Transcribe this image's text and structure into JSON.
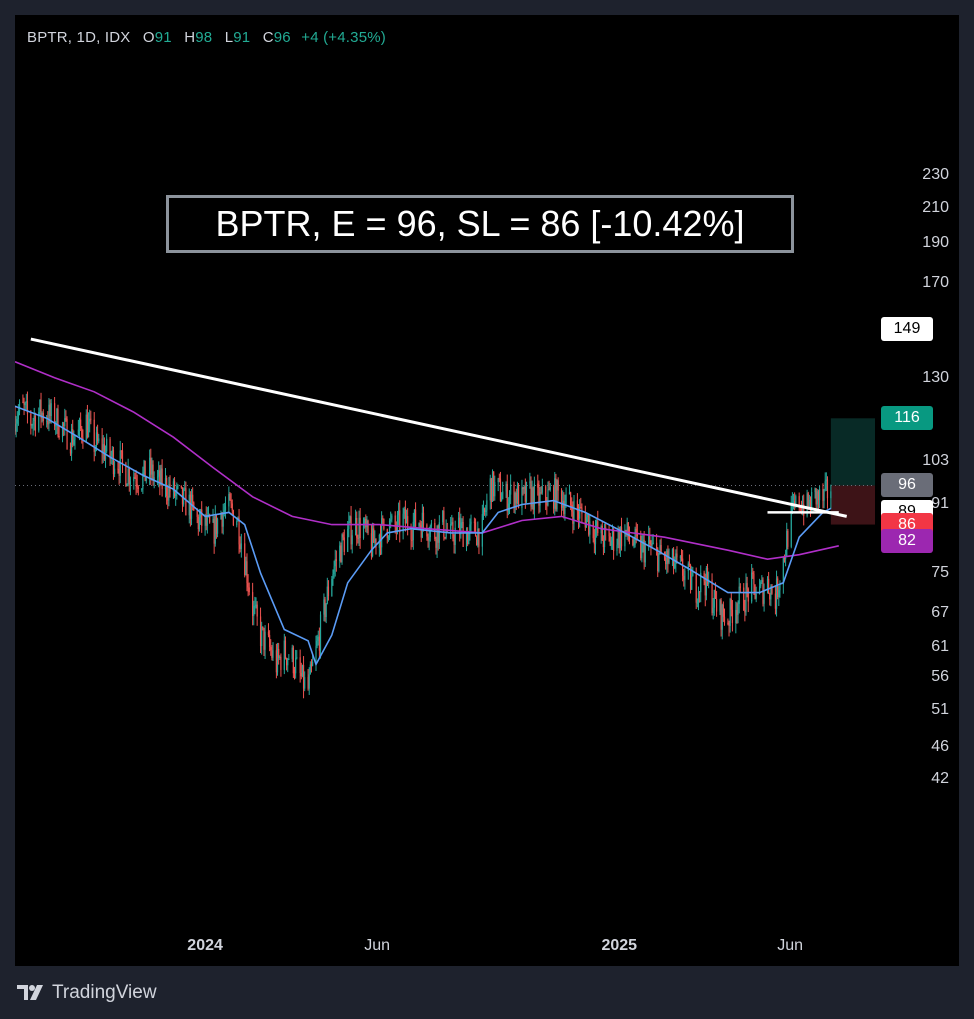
{
  "legend": {
    "symbol": "BPTR, 1D, IDX",
    "open_label": "O",
    "open": "91",
    "high_label": "H",
    "high": "98",
    "low_label": "L",
    "low": "91",
    "close_label": "C",
    "close": "96",
    "change": "+4 (+4.35%)"
  },
  "annotation": "BPTR, E = 96, SL = 86 [-10.42%]",
  "brand": "TradingView",
  "colors": {
    "up": "#26a69a",
    "down": "#ef5350",
    "ema_fast": "#5b9cf6",
    "ema_slow": "#b02fc8",
    "profit_zone": "#082a26",
    "loss_zone": "#3d1317",
    "background": "#000000"
  },
  "badges": [
    {
      "label": "149",
      "value": 149,
      "bg": "#ffffff",
      "fg": "#000000",
      "name": "price-label-149"
    },
    {
      "label": "116",
      "value": 116,
      "bg": "#089981",
      "fg": "#ffffff",
      "name": "target-price-badge"
    },
    {
      "label": "96",
      "value": 96,
      "bg": "#6a6d78",
      "fg": "#ffffff",
      "name": "last-price-badge"
    },
    {
      "label": "89",
      "value": 89,
      "bg": "#ffffff",
      "fg": "#000000",
      "name": "ema-fast-price-badge"
    },
    {
      "label": "86",
      "value": 86,
      "bg": "#f23645",
      "fg": "#ffffff",
      "name": "stop-loss-badge"
    },
    {
      "label": "82",
      "value": 82,
      "bg": "#9c27b0",
      "fg": "#ffffff",
      "name": "ema-slow-price-badge"
    }
  ],
  "chart_data": {
    "type": "candlestick",
    "scale": "log",
    "ylim": [
      42,
      230
    ],
    "y_ticks": [
      "230",
      "210",
      "190",
      "170",
      "130",
      "103",
      "91",
      "75",
      "67",
      "61",
      "56",
      "51",
      "46",
      "42"
    ],
    "x_ticks": [
      {
        "label": "2024",
        "bold": true,
        "date": "2024-01-01"
      },
      {
        "label": "Jun",
        "bold": false,
        "date": "2024-06-01"
      },
      {
        "label": "2025",
        "bold": true,
        "date": "2025-01-01"
      },
      {
        "label": "Jun",
        "bold": false,
        "date": "2025-06-01"
      }
    ],
    "xlim": [
      "2023-07-17",
      "2025-08-15"
    ],
    "last_price": 96,
    "series": [
      {
        "type": "close",
        "points": [
          [
            "2023-07-17",
            117
          ],
          [
            "2023-07-24",
            119
          ],
          [
            "2023-07-31",
            115
          ],
          [
            "2023-08-07",
            118
          ],
          [
            "2023-08-14",
            117
          ],
          [
            "2023-08-21",
            116
          ],
          [
            "2023-08-28",
            113
          ],
          [
            "2023-09-04",
            110
          ],
          [
            "2023-09-11",
            111
          ],
          [
            "2023-09-18",
            115
          ],
          [
            "2023-09-25",
            108
          ],
          [
            "2023-10-02",
            107
          ],
          [
            "2023-10-09",
            104
          ],
          [
            "2023-10-16",
            103
          ],
          [
            "2023-10-23",
            100
          ],
          [
            "2023-10-30",
            99
          ],
          [
            "2023-11-06",
            98
          ],
          [
            "2023-11-13",
            100
          ],
          [
            "2023-11-20",
            97
          ],
          [
            "2023-11-27",
            96
          ],
          [
            "2023-12-04",
            94
          ],
          [
            "2023-12-11",
            92
          ],
          [
            "2023-12-18",
            91
          ],
          [
            "2023-12-25",
            87
          ],
          [
            "2024-01-01",
            86
          ],
          [
            "2024-01-08",
            84
          ],
          [
            "2024-01-15",
            89
          ],
          [
            "2024-01-22",
            90
          ],
          [
            "2024-01-29",
            88
          ],
          [
            "2024-02-05",
            78
          ],
          [
            "2024-02-12",
            68
          ],
          [
            "2024-02-19",
            63
          ],
          [
            "2024-02-26",
            61
          ],
          [
            "2024-03-04",
            58
          ],
          [
            "2024-03-11",
            60
          ],
          [
            "2024-03-18",
            59
          ],
          [
            "2024-03-25",
            56
          ],
          [
            "2024-04-01",
            54
          ],
          [
            "2024-04-08",
            60
          ],
          [
            "2024-04-15",
            67
          ],
          [
            "2024-04-22",
            75
          ],
          [
            "2024-04-29",
            80
          ],
          [
            "2024-05-06",
            84
          ],
          [
            "2024-05-13",
            86
          ],
          [
            "2024-05-20",
            85
          ],
          [
            "2024-05-27",
            81
          ],
          [
            "2024-06-03",
            84
          ],
          [
            "2024-06-10",
            86
          ],
          [
            "2024-06-17",
            85
          ],
          [
            "2024-06-24",
            87
          ],
          [
            "2024-07-01",
            86
          ],
          [
            "2024-07-08",
            87
          ],
          [
            "2024-07-15",
            86
          ],
          [
            "2024-07-22",
            84
          ],
          [
            "2024-07-29",
            86
          ],
          [
            "2024-08-05",
            83
          ],
          [
            "2024-08-12",
            85
          ],
          [
            "2024-08-19",
            84
          ],
          [
            "2024-08-26",
            84
          ],
          [
            "2024-09-02",
            85
          ],
          [
            "2024-09-09",
            96
          ],
          [
            "2024-09-16",
            95
          ],
          [
            "2024-09-23",
            93
          ],
          [
            "2024-09-30",
            94
          ],
          [
            "2024-10-07",
            92
          ],
          [
            "2024-10-14",
            94
          ],
          [
            "2024-10-21",
            92
          ],
          [
            "2024-10-28",
            93
          ],
          [
            "2024-11-04",
            94
          ],
          [
            "2024-11-11",
            93
          ],
          [
            "2024-11-18",
            91
          ],
          [
            "2024-11-25",
            89
          ],
          [
            "2024-12-02",
            88
          ],
          [
            "2024-12-09",
            85
          ],
          [
            "2024-12-16",
            83
          ],
          [
            "2024-12-23",
            82
          ],
          [
            "2024-12-30",
            83
          ],
          [
            "2025-01-06",
            84
          ],
          [
            "2025-01-13",
            82
          ],
          [
            "2025-01-20",
            80
          ],
          [
            "2025-01-27",
            81
          ],
          [
            "2025-02-03",
            79
          ],
          [
            "2025-02-10",
            78
          ],
          [
            "2025-02-17",
            77
          ],
          [
            "2025-02-24",
            76
          ],
          [
            "2025-03-03",
            74
          ],
          [
            "2025-03-10",
            72
          ],
          [
            "2025-03-17",
            74
          ],
          [
            "2025-03-24",
            70
          ],
          [
            "2025-03-31",
            67
          ],
          [
            "2025-04-07",
            66
          ],
          [
            "2025-04-14",
            69
          ],
          [
            "2025-04-21",
            70
          ],
          [
            "2025-04-28",
            72
          ],
          [
            "2025-05-05",
            71
          ],
          [
            "2025-05-12",
            73
          ],
          [
            "2025-05-19",
            70
          ],
          [
            "2025-05-26",
            78
          ],
          [
            "2025-06-02",
            88
          ],
          [
            "2025-06-09",
            92
          ],
          [
            "2025-06-16",
            90
          ],
          [
            "2025-06-23",
            93
          ],
          [
            "2025-06-30",
            92
          ],
          [
            "2025-07-07",
            96
          ]
        ]
      },
      {
        "name": "",
        "type": "ema_fast",
        "points": [
          [
            "2023-07-17",
            120
          ],
          [
            "2023-08-14",
            116
          ],
          [
            "2023-09-11",
            110
          ],
          [
            "2023-10-09",
            104
          ],
          [
            "2023-11-06",
            99
          ],
          [
            "2023-12-04",
            95
          ],
          [
            "2024-01-01",
            88
          ],
          [
            "2024-01-22",
            89
          ],
          [
            "2024-02-05",
            86
          ],
          [
            "2024-02-19",
            75
          ],
          [
            "2024-03-11",
            64
          ],
          [
            "2024-04-01",
            62
          ],
          [
            "2024-04-08",
            58
          ],
          [
            "2024-04-22",
            63
          ],
          [
            "2024-05-06",
            73
          ],
          [
            "2024-05-27",
            80
          ],
          [
            "2024-06-10",
            84
          ],
          [
            "2024-07-01",
            85
          ],
          [
            "2024-08-05",
            84
          ],
          [
            "2024-09-02",
            84
          ],
          [
            "2024-09-16",
            89
          ],
          [
            "2024-10-07",
            91
          ],
          [
            "2024-11-04",
            92
          ],
          [
            "2024-12-02",
            89
          ],
          [
            "2025-01-06",
            84
          ],
          [
            "2025-02-03",
            80
          ],
          [
            "2025-03-03",
            76
          ],
          [
            "2025-04-07",
            71
          ],
          [
            "2025-05-05",
            71
          ],
          [
            "2025-05-26",
            73
          ],
          [
            "2025-06-09",
            83
          ],
          [
            "2025-06-30",
            89
          ],
          [
            "2025-07-07",
            90
          ]
        ]
      },
      {
        "name": "",
        "type": "ema_slow",
        "points": [
          [
            "2023-07-17",
            136
          ],
          [
            "2023-08-21",
            130
          ],
          [
            "2023-09-25",
            125
          ],
          [
            "2023-10-30",
            118
          ],
          [
            "2023-12-04",
            110
          ],
          [
            "2024-01-08",
            101
          ],
          [
            "2024-02-12",
            93
          ],
          [
            "2024-03-18",
            88
          ],
          [
            "2024-04-22",
            86
          ],
          [
            "2024-06-03",
            86
          ],
          [
            "2024-07-15",
            85
          ],
          [
            "2024-09-02",
            84
          ],
          [
            "2024-10-07",
            87
          ],
          [
            "2024-11-11",
            88
          ],
          [
            "2024-12-16",
            85
          ],
          [
            "2025-02-10",
            83
          ],
          [
            "2025-04-07",
            80
          ],
          [
            "2025-05-12",
            78
          ],
          [
            "2025-06-09",
            79
          ],
          [
            "2025-07-14",
            81
          ]
        ]
      }
    ],
    "drawings": {
      "trendline": [
        [
          "2023-07-31",
          145
        ],
        [
          "2025-07-21",
          88
        ]
      ],
      "horizontal_line": {
        "from": "2025-05-12",
        "to": "2025-07-14",
        "price": 89
      },
      "position": {
        "from": "2025-07-07",
        "to": "2025-08-15",
        "entry": 96,
        "target": 116,
        "stop": 86
      }
    }
  }
}
